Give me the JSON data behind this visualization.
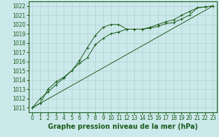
{
  "title": "Graphe pression niveau de la mer (hPa)",
  "background_color": "#cbe8ea",
  "grid_color": "#b0d0d0",
  "line_color": "#1a5c1a",
  "xlim": [
    -0.5,
    23.5
  ],
  "ylim": [
    1010.5,
    1022.5
  ],
  "yticks": [
    1011,
    1012,
    1013,
    1014,
    1015,
    1016,
    1017,
    1018,
    1019,
    1020,
    1021,
    1022
  ],
  "xticks": [
    0,
    1,
    2,
    3,
    4,
    5,
    6,
    7,
    8,
    9,
    10,
    11,
    12,
    13,
    14,
    15,
    16,
    17,
    18,
    19,
    20,
    21,
    22,
    23
  ],
  "series1_x": [
    0,
    1,
    2,
    3,
    4,
    5,
    6,
    7,
    8,
    9,
    10,
    11,
    12,
    13,
    14,
    15,
    16,
    17,
    18,
    19,
    20,
    21,
    22,
    23
  ],
  "series1_y": [
    1011.0,
    1012.0,
    1012.7,
    1013.5,
    1014.2,
    1015.0,
    1016.1,
    1017.5,
    1018.8,
    1019.7,
    1020.0,
    1020.0,
    1019.5,
    1019.5,
    1019.5,
    1019.6,
    1019.8,
    1020.1,
    1020.2,
    1020.6,
    1021.0,
    1021.8,
    1021.9,
    1022.0
  ],
  "series2_x": [
    0,
    1,
    2,
    3,
    4,
    5,
    6,
    7,
    8,
    9,
    10,
    11,
    12,
    13,
    14,
    15,
    16,
    17,
    18,
    19,
    20,
    21,
    22,
    23
  ],
  "series2_y": [
    1011.0,
    1011.5,
    1013.0,
    1013.8,
    1014.3,
    1015.0,
    1015.8,
    1016.4,
    1017.8,
    1018.5,
    1019.0,
    1019.2,
    1019.5,
    1019.5,
    1019.5,
    1019.7,
    1020.0,
    1020.3,
    1020.5,
    1021.0,
    1021.4,
    1021.8,
    1021.9,
    1022.0
  ],
  "series3_x": [
    0,
    23
  ],
  "series3_y": [
    1011.0,
    1022.0
  ],
  "title_fontsize": 7,
  "tick_fontsize": 5.5
}
